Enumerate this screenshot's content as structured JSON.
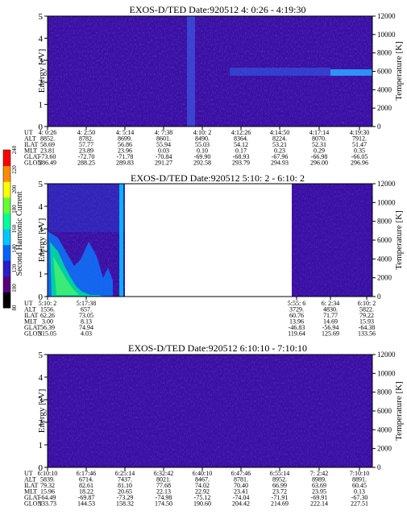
{
  "panels": [
    {
      "title": "EXOS-D/TED   Date:920512   4: 0:26 - 4:19:30",
      "ylabel_left": "Energy [eV]",
      "ylabel_right": "Temperature [K]",
      "y_ticks": [
        "0",
        "1",
        "2",
        "3",
        "4",
        "5"
      ],
      "t_ticks": [
        "0",
        "2000",
        "4000",
        "6000",
        "8000",
        "10000",
        "12000"
      ],
      "row_labels": [
        "UT",
        "ALT",
        "ILAT",
        "MLT",
        "GLAT",
        "GLON"
      ],
      "columns": [
        [
          "4: 0:26",
          "8852.",
          "58.69",
          "23.81",
          "-73.60",
          "286.49"
        ],
        [
          "4: 2:50",
          "8782.",
          "57.77",
          "23.89",
          "-72.70",
          "288.25"
        ],
        [
          "4: 5:14",
          "8699.",
          "56.86",
          "23.96",
          "-71.78",
          "289.83"
        ],
        [
          "4: 7:38",
          "8601.",
          "55.94",
          "0.03",
          "-70.84",
          "291.27"
        ],
        [
          "4:10: 2",
          "8490.",
          "55.03",
          "0.10",
          "-69.90",
          "292.58"
        ],
        [
          "4:12:26",
          "8364.",
          "54.12",
          "0.17",
          "-68.93",
          "293.79"
        ],
        [
          "4:14:50",
          "8224.",
          "53.21",
          "0.23",
          "-67.96",
          "294.93"
        ],
        [
          "4:17:14",
          "8070.",
          "52.31",
          "0.29",
          "-66.98",
          "296.00"
        ],
        [
          "4:19:30",
          "7912.",
          "51.47",
          "0.35",
          "-66.05",
          "296.96"
        ]
      ]
    },
    {
      "title": "EXOS-D/TED   Date:920512   5:10: 2 - 6:10: 2",
      "ylabel_left": "Energy [eV]",
      "ylabel_right": "Temperature [K]",
      "y_ticks": [
        "0",
        "1",
        "2",
        "3",
        "4",
        "5"
      ],
      "t_ticks": [
        "0",
        "2000",
        "4000",
        "6000",
        "8000",
        "10000",
        "12000"
      ],
      "row_labels": [
        "UT",
        "ALT",
        "ILAT",
        "MLT",
        "GLAT",
        "GLON"
      ],
      "columns": [
        [
          "5:10: 2",
          "1556.",
          "62.26",
          "3.00",
          "56.39",
          "315.05"
        ],
        [
          "5:17:38",
          "657.",
          "73.05",
          "8.13",
          "74.94",
          "4.03"
        ],
        [
          "5:55: 6",
          "3729.",
          "60.76",
          "13.96",
          "-46.83",
          "119.64"
        ],
        [
          "6: 2:34",
          "4830.",
          "71.77",
          "14.69",
          "-56.94",
          "125.69"
        ],
        [
          "6:10: 2",
          "5822.",
          "79.22",
          "15.93",
          "-64.38",
          "133.56"
        ]
      ]
    },
    {
      "title": "EXOS-D/TED   Date:920512   6:10:10 - 7:10:10",
      "ylabel_left": "Energy [eV]",
      "ylabel_right": "Temperature [K]",
      "y_ticks": [
        "0",
        "1",
        "2",
        "3",
        "4",
        "5"
      ],
      "t_ticks": [
        "0",
        "2000",
        "4000",
        "6000",
        "8000",
        "10000",
        "12000"
      ],
      "row_labels": [
        "UT",
        "ALT",
        "ILAT",
        "MLT",
        "GLAT",
        "GLON"
      ],
      "columns": [
        [
          "6:10:10",
          "5839.",
          "79.32",
          "15.96",
          "-64.49",
          "133.73"
        ],
        [
          "6:17:46",
          "6714.",
          "82.61",
          "18.22",
          "-69.87",
          "144.53"
        ],
        [
          "6:25:14",
          "7437.",
          "81.10",
          "20.65",
          "-73.29",
          "158.32"
        ],
        [
          "6:32:42",
          "8021.",
          "77.68",
          "22.13",
          "-74.98",
          "174.50"
        ],
        [
          "6:40:10",
          "8467.",
          "74.02",
          "22.92",
          "-75.12",
          "190.60"
        ],
        [
          "6:47:46",
          "8781.",
          "70.40",
          "23.41",
          "-74.04",
          "204.42"
        ],
        [
          "6:55:14",
          "8952.",
          "66.99",
          "23.72",
          "-71.91",
          "214.69"
        ],
        [
          "7: 2:42",
          "8989.",
          "63.69",
          "23.95",
          "-69.91",
          "222.14"
        ],
        [
          "7:10:10",
          "8891.",
          "60.45",
          "0.13",
          "-67.30",
          "227.51"
        ]
      ]
    }
  ],
  "colorbar": {
    "label": "Second Harmonic Current",
    "ticks": [
      "80",
      "100",
      "120",
      "140",
      "160",
      "180",
      "200",
      "220",
      "240"
    ],
    "colors": [
      "#000000",
      "#5a007a",
      "#2a1ec8",
      "#0064ff",
      "#00c8ff",
      "#00ff9b",
      "#64ff32",
      "#ffff00",
      "#ff8c00",
      "#ff0000"
    ]
  },
  "chart_data": [
    {
      "type": "heatmap",
      "title": "EXOS-D/TED   Date:920512   4: 0:26 - 4:19:30",
      "xlabel": "UT",
      "ylabel": "Energy [eV]",
      "y2label": "Temperature [K]",
      "ylim": [
        0,
        5
      ],
      "y2lim": [
        0,
        12000
      ],
      "x": [
        "4: 0:26",
        "4: 2:50",
        "4: 5:14",
        "4: 7:38",
        "4:10: 2",
        "4:12:26",
        "4:14:50",
        "4:17:14",
        "4:19:30"
      ],
      "features": [
        {
          "kind": "band",
          "energy_ev": 2.4,
          "from": "4:12:26",
          "to": "4:19:30"
        },
        {
          "kind": "spike",
          "at": "4: 7:38",
          "energy_range_ev": [
            0,
            5
          ]
        }
      ]
    },
    {
      "type": "heatmap",
      "title": "EXOS-D/TED   Date:920512   5:10: 2 - 6:10: 2",
      "xlabel": "UT",
      "ylabel": "Energy [eV]",
      "y2label": "Temperature [K]",
      "ylim": [
        0,
        5
      ],
      "y2lim": [
        0,
        12000
      ],
      "x": [
        "5:10: 2",
        "5:17:38",
        "5:55: 6",
        "6: 2:34",
        "6:10: 2"
      ],
      "data_gaps": [
        [
          "5:17:38",
          "5:55: 6"
        ]
      ],
      "features": [
        {
          "kind": "high-intensity",
          "from": "5:10: 2",
          "to": "5:17:38",
          "energy_range_ev": [
            0,
            3
          ]
        }
      ]
    },
    {
      "type": "heatmap",
      "title": "EXOS-D/TED   Date:920512   6:10:10 - 7:10:10",
      "xlabel": "UT",
      "ylabel": "Energy [eV]",
      "y2label": "Temperature [K]",
      "ylim": [
        0,
        5
      ],
      "y2lim": [
        0,
        12000
      ],
      "x": [
        "6:10:10",
        "6:17:46",
        "6:25:14",
        "6:32:42",
        "6:40:10",
        "6:47:46",
        "6:55:14",
        "7: 2:42",
        "7:10:10"
      ]
    }
  ]
}
